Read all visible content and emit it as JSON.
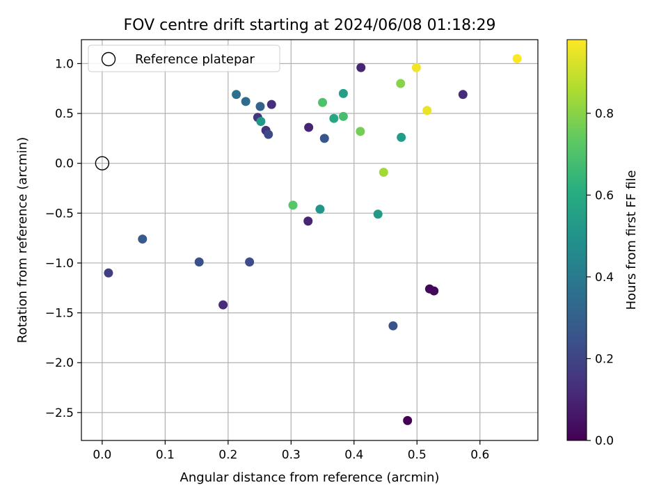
{
  "chart_data": {
    "type": "scatter",
    "title": "FOV centre drift starting at 2024/06/08 01:18:29",
    "xlabel": "Angular distance from reference (arcmin)",
    "ylabel": "Rotation from reference (arcmin)",
    "xlim": [
      -0.033,
      0.692
    ],
    "ylim": [
      -2.78,
      1.24
    ],
    "x_ticks": [
      0.0,
      0.1,
      0.2,
      0.3,
      0.4,
      0.5,
      0.6
    ],
    "x_tick_labels": [
      "0.0",
      "0.1",
      "0.2",
      "0.3",
      "0.4",
      "0.5",
      "0.6"
    ],
    "y_ticks": [
      1.0,
      0.5,
      0.0,
      -0.5,
      -1.0,
      -1.5,
      -2.0,
      -2.5
    ],
    "y_tick_labels": [
      "1.0",
      "0.5",
      "0.0",
      "−0.5",
      "−1.0",
      "−1.5",
      "−2.0",
      "−2.5"
    ],
    "grid": true,
    "legend": {
      "placement": "top-left",
      "entries": [
        {
          "label": "Reference platepar",
          "marker": "open-circle",
          "color": "#000000"
        }
      ]
    },
    "reference_point": {
      "x": 0.0,
      "y": 0.0
    },
    "colorbar": {
      "label": "Hours from first FF file",
      "colormap": "viridis",
      "range": [
        0.0,
        0.98
      ],
      "ticks": [
        0.0,
        0.2,
        0.4,
        0.6,
        0.8
      ],
      "tick_labels": [
        "0.0",
        "0.2",
        "0.4",
        "0.6",
        "0.8"
      ]
    },
    "points": [
      {
        "x": 0.485,
        "y": -2.58,
        "c": 0.0
      },
      {
        "x": 0.52,
        "y": -1.26,
        "c": 0.02
      },
      {
        "x": 0.527,
        "y": -1.28,
        "c": 0.02
      },
      {
        "x": 0.327,
        "y": -0.58,
        "c": 0.1
      },
      {
        "x": 0.328,
        "y": 0.36,
        "c": 0.1
      },
      {
        "x": 0.411,
        "y": 0.96,
        "c": 0.1
      },
      {
        "x": 0.573,
        "y": 0.69,
        "c": 0.12
      },
      {
        "x": 0.192,
        "y": -1.42,
        "c": 0.12
      },
      {
        "x": 0.269,
        "y": 0.59,
        "c": 0.13
      },
      {
        "x": 0.26,
        "y": 0.33,
        "c": 0.14
      },
      {
        "x": 0.247,
        "y": 0.46,
        "c": 0.15
      },
      {
        "x": 0.01,
        "y": -1.1,
        "c": 0.18
      },
      {
        "x": 0.264,
        "y": 0.29,
        "c": 0.22
      },
      {
        "x": 0.234,
        "y": -0.99,
        "c": 0.23
      },
      {
        "x": 0.154,
        "y": -0.99,
        "c": 0.24
      },
      {
        "x": 0.462,
        "y": -1.63,
        "c": 0.25
      },
      {
        "x": 0.353,
        "y": 0.25,
        "c": 0.26
      },
      {
        "x": 0.064,
        "y": -0.76,
        "c": 0.28
      },
      {
        "x": 0.251,
        "y": 0.57,
        "c": 0.31
      },
      {
        "x": 0.228,
        "y": 0.62,
        "c": 0.34
      },
      {
        "x": 0.213,
        "y": 0.69,
        "c": 0.36
      },
      {
        "x": 0.346,
        "y": -0.46,
        "c": 0.51
      },
      {
        "x": 0.252,
        "y": 0.42,
        "c": 0.52
      },
      {
        "x": 0.438,
        "y": -0.51,
        "c": 0.53
      },
      {
        "x": 0.475,
        "y": 0.26,
        "c": 0.54
      },
      {
        "x": 0.383,
        "y": 0.7,
        "c": 0.55
      },
      {
        "x": 0.368,
        "y": 0.45,
        "c": 0.58
      },
      {
        "x": 0.383,
        "y": 0.47,
        "c": 0.68
      },
      {
        "x": 0.35,
        "y": 0.61,
        "c": 0.7
      },
      {
        "x": 0.303,
        "y": -0.42,
        "c": 0.72
      },
      {
        "x": 0.41,
        "y": 0.32,
        "c": 0.77
      },
      {
        "x": 0.474,
        "y": 0.8,
        "c": 0.8
      },
      {
        "x": 0.447,
        "y": -0.09,
        "c": 0.84
      },
      {
        "x": 0.516,
        "y": 0.53,
        "c": 0.95
      },
      {
        "x": 0.499,
        "y": 0.96,
        "c": 0.96
      },
      {
        "x": 0.659,
        "y": 1.05,
        "c": 0.98
      }
    ]
  }
}
